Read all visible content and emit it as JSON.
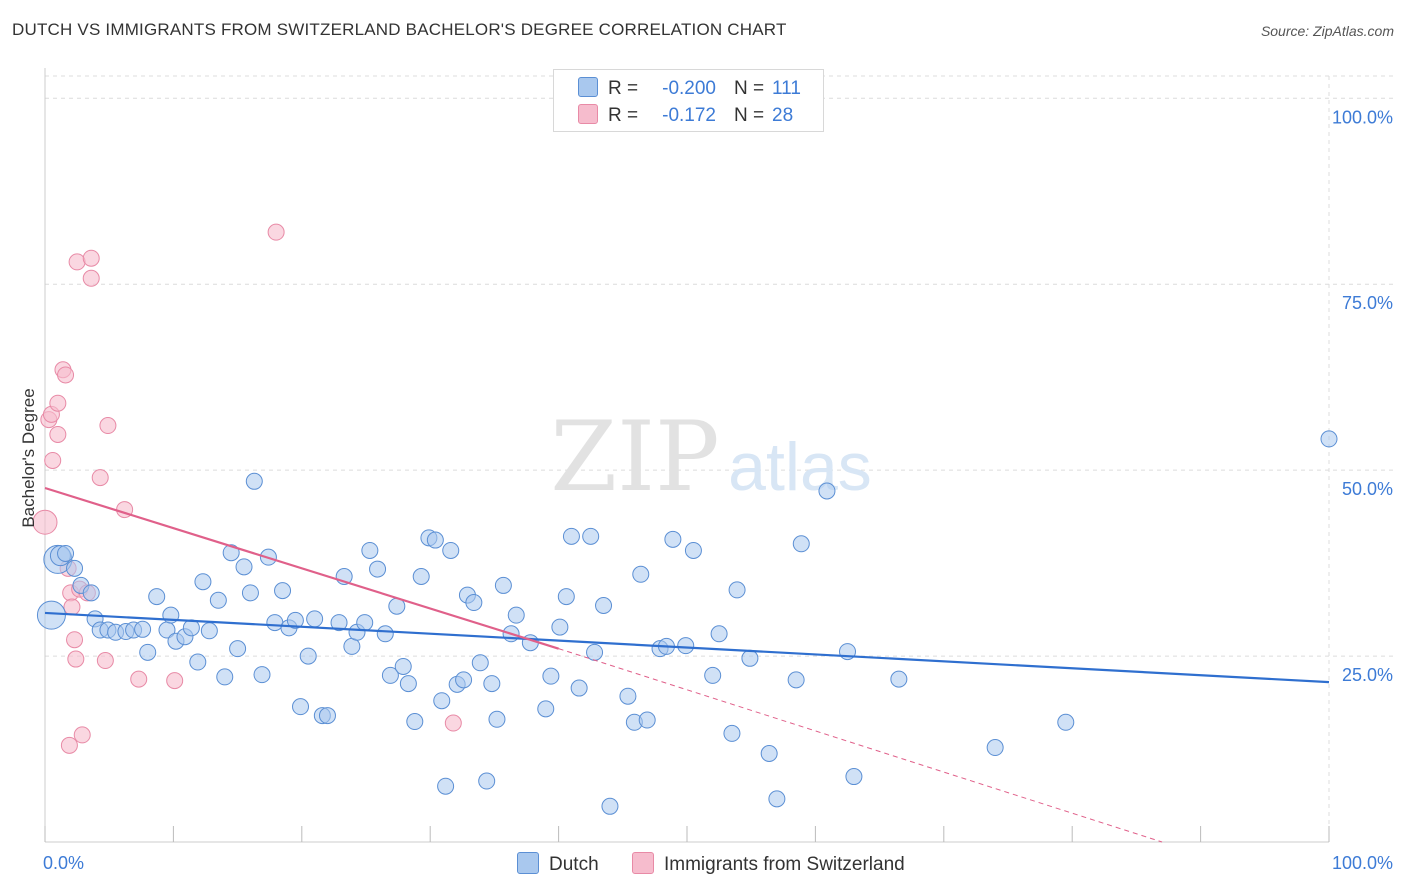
{
  "title": "DUTCH VS IMMIGRANTS FROM SWITZERLAND BACHELOR'S DEGREE CORRELATION CHART",
  "source": "Source: ZipAtlas.com",
  "watermark": {
    "zip": "ZIP",
    "atlas": "atlas"
  },
  "legend": {
    "rows": [
      {
        "r_label": "R =",
        "r_value": "-0.200",
        "n_label": "N =",
        "n_value": "111"
      },
      {
        "r_label": "R =",
        "r_value": "-0.172",
        "n_label": "N =",
        "n_value": "28"
      }
    ]
  },
  "colors": {
    "dutch_fill": "#a9c8ee",
    "dutch_stroke": "#5b8fd4",
    "dutch_line": "#2f6fcf",
    "swiss_fill": "#f6bccd",
    "swiss_stroke": "#e88aa6",
    "swiss_line": "#e0608a",
    "tick_label": "#3d7bd6",
    "grid": "#dcdcdc"
  },
  "chart_data": {
    "type": "scatter",
    "title": "DUTCH VS IMMIGRANTS FROM SWITZERLAND BACHELOR'S DEGREE CORRELATION CHART",
    "xlabel": "",
    "ylabel": "Bachelor's Degree",
    "xlim": [
      0,
      100
    ],
    "ylim": [
      0,
      103
    ],
    "x_tick_labels": [
      "0.0%",
      "100.0%"
    ],
    "y_ticks": [
      25,
      50,
      75,
      100
    ],
    "y_tick_labels": [
      "25.0%",
      "50.0%",
      "75.0%",
      "100.0%"
    ],
    "series": [
      {
        "name": "Dutch",
        "r": -0.2,
        "n": 111,
        "trend": {
          "x": [
            0,
            100
          ],
          "y": [
            30.8,
            21.5
          ],
          "dashed_extension": false
        },
        "points": [
          [
            1.0,
            38.0,
            14
          ],
          [
            1.2,
            38.5,
            10
          ],
          [
            1.6,
            38.8,
            8
          ],
          [
            2.3,
            36.8,
            8
          ],
          [
            2.8,
            34.5,
            8
          ],
          [
            0.5,
            30.5,
            14
          ],
          [
            3.6,
            33.5,
            8
          ],
          [
            3.9,
            30.0,
            8
          ],
          [
            4.3,
            28.5,
            8
          ],
          [
            4.9,
            28.5,
            8
          ],
          [
            5.5,
            28.2,
            8
          ],
          [
            6.3,
            28.3,
            8
          ],
          [
            6.9,
            28.5,
            8
          ],
          [
            7.6,
            28.6,
            8
          ],
          [
            8.0,
            25.5,
            8
          ],
          [
            8.7,
            33.0,
            8
          ],
          [
            9.5,
            28.5,
            8
          ],
          [
            9.8,
            30.5,
            8
          ],
          [
            10.2,
            27.0,
            8
          ],
          [
            10.9,
            27.6,
            8
          ],
          [
            11.4,
            28.8,
            8
          ],
          [
            11.9,
            24.2,
            8
          ],
          [
            12.3,
            35.0,
            8
          ],
          [
            12.8,
            28.4,
            8
          ],
          [
            13.5,
            32.5,
            8
          ],
          [
            14.0,
            22.2,
            8
          ],
          [
            14.5,
            38.9,
            8
          ],
          [
            15.0,
            26.0,
            8
          ],
          [
            15.5,
            37.0,
            8
          ],
          [
            16.0,
            33.5,
            8
          ],
          [
            16.3,
            48.5,
            8
          ],
          [
            16.9,
            22.5,
            8
          ],
          [
            17.4,
            38.3,
            8
          ],
          [
            17.9,
            29.5,
            8
          ],
          [
            18.5,
            33.8,
            8
          ],
          [
            19.0,
            28.8,
            8
          ],
          [
            19.5,
            29.8,
            8
          ],
          [
            19.9,
            18.2,
            8
          ],
          [
            20.5,
            25.0,
            8
          ],
          [
            21.0,
            30.0,
            8
          ],
          [
            21.6,
            17.0,
            8
          ],
          [
            22.0,
            17.0,
            8
          ],
          [
            22.9,
            29.5,
            8
          ],
          [
            23.3,
            35.7,
            8
          ],
          [
            23.9,
            26.3,
            8
          ],
          [
            24.3,
            28.2,
            8
          ],
          [
            24.9,
            29.5,
            8
          ],
          [
            25.3,
            39.2,
            8
          ],
          [
            25.9,
            36.7,
            8
          ],
          [
            26.5,
            28.0,
            8
          ],
          [
            26.9,
            22.4,
            8
          ],
          [
            27.4,
            31.7,
            8
          ],
          [
            27.9,
            23.6,
            8
          ],
          [
            28.3,
            21.3,
            8
          ],
          [
            28.8,
            16.2,
            8
          ],
          [
            29.3,
            35.7,
            8
          ],
          [
            29.9,
            40.9,
            8
          ],
          [
            30.4,
            40.6,
            8
          ],
          [
            30.9,
            19.0,
            8
          ],
          [
            31.2,
            7.5,
            8
          ],
          [
            31.6,
            39.2,
            8
          ],
          [
            32.1,
            21.2,
            8
          ],
          [
            32.6,
            21.8,
            8
          ],
          [
            32.9,
            33.2,
            8
          ],
          [
            33.4,
            32.2,
            8
          ],
          [
            33.9,
            24.1,
            8
          ],
          [
            34.4,
            8.2,
            8
          ],
          [
            34.8,
            21.3,
            8
          ],
          [
            35.2,
            16.5,
            8
          ],
          [
            35.7,
            34.5,
            8
          ],
          [
            36.3,
            28.0,
            8
          ],
          [
            36.7,
            30.5,
            8
          ],
          [
            37.8,
            26.8,
            8
          ],
          [
            39.0,
            17.9,
            8
          ],
          [
            39.4,
            22.3,
            8
          ],
          [
            40.1,
            28.9,
            8
          ],
          [
            40.6,
            33.0,
            8
          ],
          [
            41.0,
            41.1,
            8
          ],
          [
            41.6,
            20.7,
            8
          ],
          [
            42.5,
            41.1,
            8
          ],
          [
            42.8,
            25.5,
            8
          ],
          [
            43.5,
            31.8,
            8
          ],
          [
            44.0,
            4.8,
            8
          ],
          [
            45.4,
            19.6,
            8
          ],
          [
            45.9,
            16.1,
            8
          ],
          [
            46.4,
            36.0,
            8
          ],
          [
            46.9,
            16.4,
            8
          ],
          [
            47.9,
            26.0,
            8
          ],
          [
            48.4,
            26.3,
            8
          ],
          [
            48.9,
            40.7,
            8
          ],
          [
            49.9,
            26.4,
            8
          ],
          [
            50.5,
            39.2,
            8
          ],
          [
            52.0,
            22.4,
            8
          ],
          [
            52.5,
            28.0,
            8
          ],
          [
            53.5,
            14.6,
            8
          ],
          [
            53.9,
            33.9,
            8
          ],
          [
            54.9,
            24.7,
            8
          ],
          [
            56.4,
            11.9,
            8
          ],
          [
            57.0,
            5.8,
            8
          ],
          [
            58.5,
            21.8,
            8
          ],
          [
            58.9,
            40.1,
            8
          ],
          [
            60.9,
            47.2,
            8
          ],
          [
            62.5,
            25.6,
            8
          ],
          [
            63.0,
            8.8,
            8
          ],
          [
            66.5,
            21.9,
            8
          ],
          [
            74.0,
            12.7,
            8
          ],
          [
            79.5,
            16.1,
            8
          ],
          [
            100.0,
            54.2,
            8
          ]
        ]
      },
      {
        "name": "Immigrants from Switzerland",
        "r": -0.172,
        "n": 28,
        "trend": {
          "x": [
            0,
            40
          ],
          "y": [
            47.6,
            26.0
          ],
          "dashed_extension_to": [
            87,
            0
          ]
        },
        "points": [
          [
            0.0,
            43.0,
            12
          ],
          [
            0.3,
            56.8,
            8
          ],
          [
            0.5,
            57.5,
            8
          ],
          [
            0.6,
            51.3,
            8
          ],
          [
            1.0,
            54.8,
            8
          ],
          [
            1.0,
            59.0,
            8
          ],
          [
            1.4,
            63.5,
            8
          ],
          [
            1.6,
            62.8,
            8
          ],
          [
            1.8,
            36.8,
            8
          ],
          [
            1.9,
            13.0,
            8
          ],
          [
            2.0,
            33.5,
            8
          ],
          [
            2.1,
            31.6,
            8
          ],
          [
            2.3,
            27.2,
            8
          ],
          [
            2.4,
            24.6,
            8
          ],
          [
            2.5,
            78.0,
            8
          ],
          [
            2.7,
            34.0,
            8
          ],
          [
            2.9,
            14.4,
            8
          ],
          [
            3.3,
            33.5,
            8
          ],
          [
            3.6,
            78.5,
            8
          ],
          [
            3.6,
            75.8,
            8
          ],
          [
            4.3,
            49.0,
            8
          ],
          [
            4.7,
            24.4,
            8
          ],
          [
            4.9,
            56.0,
            8
          ],
          [
            6.2,
            44.7,
            8
          ],
          [
            7.3,
            21.9,
            8
          ],
          [
            10.1,
            21.7,
            8
          ],
          [
            18.0,
            82.0,
            8
          ],
          [
            31.8,
            16.0,
            8
          ]
        ]
      }
    ]
  },
  "bottom_legend": {
    "items": [
      {
        "label": "Dutch"
      },
      {
        "label": "Immigrants from Switzerland"
      }
    ]
  }
}
